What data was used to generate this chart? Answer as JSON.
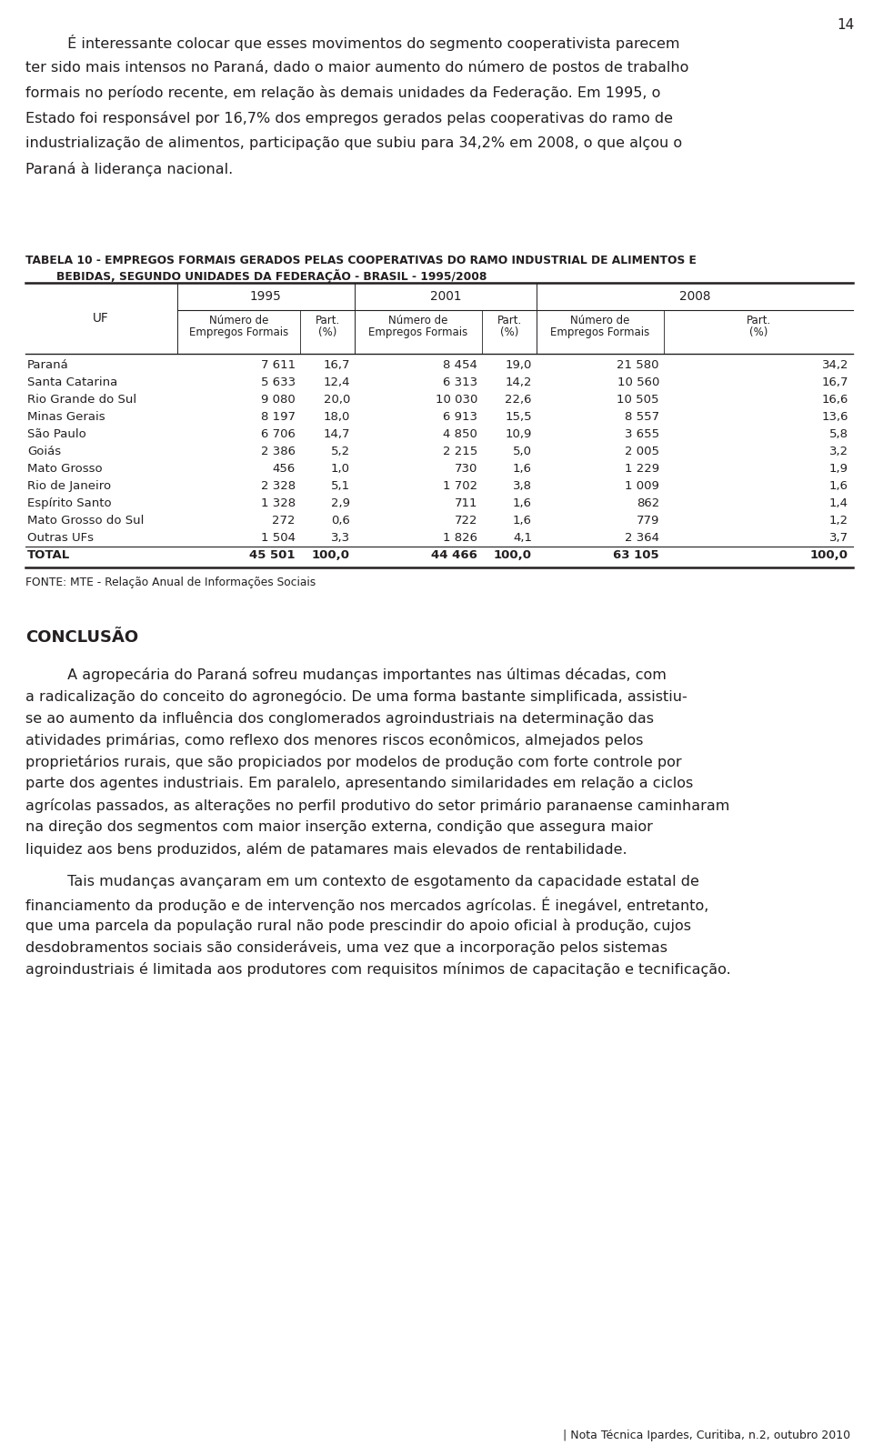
{
  "page_number": "14",
  "bg_color": "#ffffff",
  "text_color": "#231f20",
  "intro_lines": [
    "         É interessante colocar que esses movimentos do segmento cooperativista parecem",
    "ter sido mais intensos no Paraná, dado o maior aumento do número de postos de trabalho",
    "formais no período recente, em relação às demais unidades da Federação. Em 1995, o",
    "Estado foi responsável por 16,7% dos empregos gerados pelas cooperativas do ramo de",
    "industrialização de alimentos, participação que subiu para 34,2% em 2008, o que alçou o",
    "Paraná à liderança nacional."
  ],
  "table_title_line1": "TABELA 10 - EMPREGOS FORMAIS GERADOS PELAS COOPERATIVAS DO RAMO INDUSTRIAL DE ALIMENTOS E",
  "table_title_line2": "        BEBIDAS, SEGUNDO UNIDADES DA FEDERAÇÃO - BRASIL - 1995/2008",
  "rows": [
    [
      "Paraná",
      "7 611",
      "16,7",
      "8 454",
      "19,0",
      "21 580",
      "34,2"
    ],
    [
      "Santa Catarina",
      "5 633",
      "12,4",
      "6 313",
      "14,2",
      "10 560",
      "16,7"
    ],
    [
      "Rio Grande do Sul",
      "9 080",
      "20,0",
      "10 030",
      "22,6",
      "10 505",
      "16,6"
    ],
    [
      "Minas Gerais",
      "8 197",
      "18,0",
      "6 913",
      "15,5",
      "8 557",
      "13,6"
    ],
    [
      "São Paulo",
      "6 706",
      "14,7",
      "4 850",
      "10,9",
      "3 655",
      "5,8"
    ],
    [
      "Goiás",
      "2 386",
      "5,2",
      "2 215",
      "5,0",
      "2 005",
      "3,2"
    ],
    [
      "Mato Grosso",
      "456",
      "1,0",
      "730",
      "1,6",
      "1 229",
      "1,9"
    ],
    [
      "Rio de Janeiro",
      "2 328",
      "5,1",
      "1 702",
      "3,8",
      "1 009",
      "1,6"
    ],
    [
      "Espírito Santo",
      "1 328",
      "2,9",
      "711",
      "1,6",
      "862",
      "1,4"
    ],
    [
      "Mato Grosso do Sul",
      "272",
      "0,6",
      "722",
      "1,6",
      "779",
      "1,2"
    ],
    [
      "Outras UFs",
      "1 504",
      "3,3",
      "1 826",
      "4,1",
      "2 364",
      "3,7"
    ],
    [
      "TOTAL",
      "45 501",
      "100,0",
      "44 466",
      "100,0",
      "63 105",
      "100,0"
    ]
  ],
  "fonte": "FONTE: MTE - Relação Anual de Informações Sociais",
  "conclusao_title": "CONCLUSÃO",
  "conclusao_p1_lines": [
    "         A agropecária do Paraná sofreu mudanças importantes nas últimas décadas, com",
    "a radicalização do conceito do agronegócio. De uma forma bastante simplificada, assistiu-",
    "se ao aumento da influência dos conglomerados agroindustriais na determinação das",
    "atividades primárias, como reflexo dos menores riscos econômicos, almejados pelos",
    "proprietários rurais, que são propiciados por modelos de produção com forte controle por",
    "parte dos agentes industriais. Em paralelo, apresentando similaridades em relação a ciclos",
    "agrícolas passados, as alterações no perfil produtivo do setor primário paranaense caminharam",
    "na direção dos segmentos com maior inserção externa, condição que assegura maior",
    "liquidez aos bens produzidos, além de patamares mais elevados de rentabilidade."
  ],
  "conclusao_p2_lines": [
    "         Tais mudanças avançaram em um contexto de esgotamento da capacidade estatal de",
    "financiamento da produção e de intervenção nos mercados agrícolas. É inegável, entretanto,",
    "que uma parcela da população rural não pode prescindir do apoio oficial à produção, cujos",
    "desdobramentos sociais são consideráveis, uma vez que a incorporação pelos sistemas",
    "agroindustriais é limitada aos produtores com requisitos mínimos de capacitação e tecnificação."
  ],
  "footer": "| Nota Técnica Ipardes, Curitiba, n.2, outubro 2010"
}
